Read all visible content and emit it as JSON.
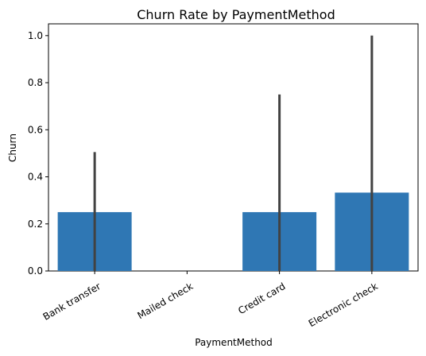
{
  "chart_data": {
    "type": "bar",
    "title": "Churn Rate by PaymentMethod",
    "xlabel": "PaymentMethod",
    "ylabel": "Churn",
    "categories": [
      "Bank transfer",
      "Mailed check",
      "Credit card",
      "Electronic check"
    ],
    "values": [
      0.25,
      0.0,
      0.25,
      0.333
    ],
    "error_bars": [
      [
        0.0,
        0.505
      ],
      [
        0.0,
        0.0
      ],
      [
        0.0,
        0.75
      ],
      [
        0.0,
        1.0
      ]
    ],
    "ylim": [
      0,
      1.05
    ],
    "yticks": [
      0.0,
      0.2,
      0.4,
      0.6,
      0.8,
      1.0
    ],
    "ytick_labels": [
      "0.0",
      "0.2",
      "0.4",
      "0.6",
      "0.8",
      "1.0"
    ],
    "grid": false,
    "bar_color": "#2f77b4",
    "error_color": "#424242"
  }
}
